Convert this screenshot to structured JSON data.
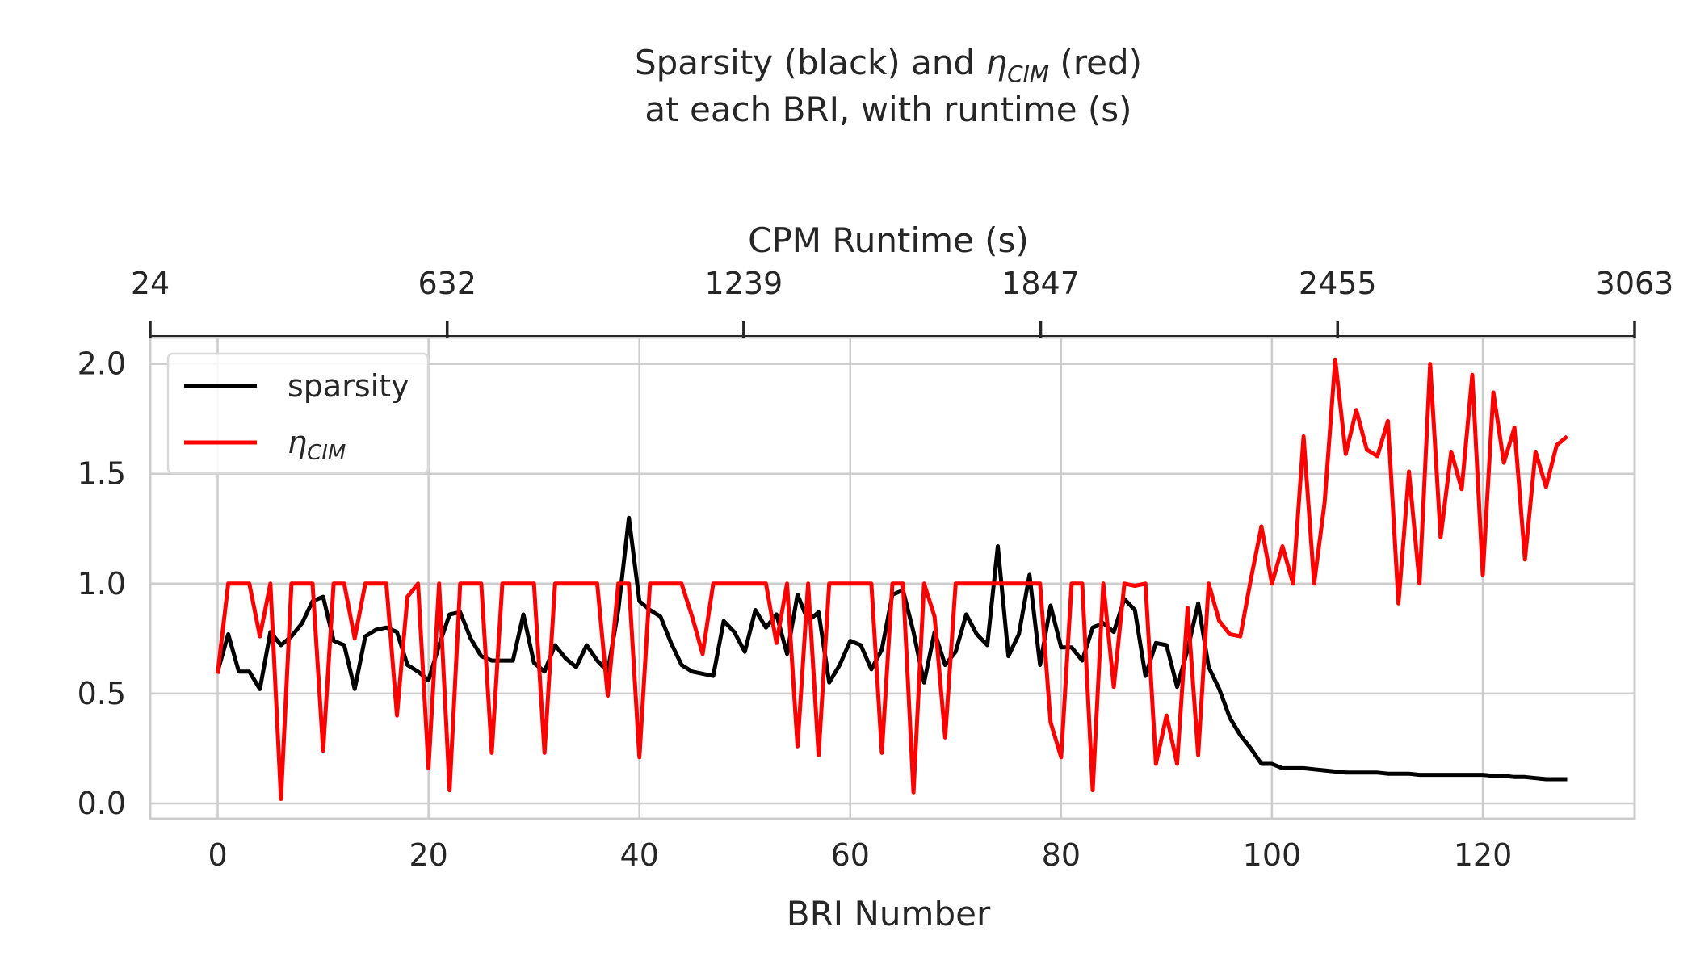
{
  "chart_data": {
    "type": "line",
    "title": {
      "line1_pre": "Sparsity (black) and ",
      "eta": "η",
      "sub": "CIM",
      "line1_post": " (red)",
      "line2": "at each BRI, with runtime (s)"
    },
    "xlabel": "BRI Number",
    "x2label": "CPM Runtime (s)",
    "xlim": [
      -6.4,
      134.4
    ],
    "ylim": [
      -0.07,
      2.12
    ],
    "xticks": [
      0,
      20,
      40,
      60,
      80,
      100,
      120
    ],
    "xtick_labels": [
      "0",
      "20",
      "40",
      "60",
      "80",
      "100",
      "120"
    ],
    "yticks": [
      0.0,
      0.5,
      1.0,
      1.5,
      2.0
    ],
    "ytick_labels": [
      "0.0",
      "0.5",
      "1.0",
      "1.5",
      "2.0"
    ],
    "top_axis": {
      "ticks": [
        24,
        632,
        1239,
        1847,
        2455,
        3063
      ],
      "tick_labels": [
        "24",
        "632",
        "1239",
        "1847",
        "2455",
        "3063"
      ],
      "range": [
        24,
        3063
      ]
    },
    "grid": true,
    "legend_position": "top-left",
    "series": [
      {
        "name": "sparsity",
        "color": "#000000",
        "x": [
          0,
          1,
          2,
          3,
          4,
          5,
          6,
          7,
          8,
          9,
          10,
          11,
          12,
          13,
          14,
          15,
          16,
          17,
          18,
          19,
          20,
          21,
          22,
          23,
          24,
          25,
          26,
          27,
          28,
          29,
          30,
          31,
          32,
          33,
          34,
          35,
          36,
          37,
          38,
          39,
          40,
          41,
          42,
          43,
          44,
          45,
          46,
          47,
          48,
          49,
          50,
          51,
          52,
          53,
          54,
          55,
          56,
          57,
          58,
          59,
          60,
          61,
          62,
          63,
          64,
          65,
          66,
          67,
          68,
          69,
          70,
          71,
          72,
          73,
          74,
          75,
          76,
          77,
          78,
          79,
          80,
          81,
          82,
          83,
          84,
          85,
          86,
          87,
          88,
          89,
          90,
          91,
          92,
          93,
          94,
          95,
          96,
          97,
          98,
          99,
          100,
          101,
          102,
          103,
          104,
          105,
          106,
          107,
          108,
          109,
          110,
          111,
          112,
          113,
          114,
          115,
          116,
          117,
          118,
          119,
          120,
          121,
          122,
          123,
          124,
          125,
          126,
          127,
          128
        ],
        "values": [
          0.6,
          0.77,
          0.6,
          0.6,
          0.52,
          0.78,
          0.72,
          0.76,
          0.82,
          0.92,
          0.94,
          0.74,
          0.72,
          0.52,
          0.76,
          0.79,
          0.8,
          0.78,
          0.63,
          0.6,
          0.56,
          0.72,
          0.86,
          0.87,
          0.75,
          0.67,
          0.65,
          0.65,
          0.65,
          0.86,
          0.64,
          0.6,
          0.72,
          0.66,
          0.62,
          0.72,
          0.65,
          0.6,
          0.88,
          1.3,
          0.92,
          0.88,
          0.85,
          0.73,
          0.63,
          0.6,
          0.59,
          0.58,
          0.83,
          0.78,
          0.69,
          0.88,
          0.8,
          0.86,
          0.68,
          0.95,
          0.83,
          0.87,
          0.55,
          0.63,
          0.74,
          0.72,
          0.61,
          0.7,
          0.95,
          0.97,
          0.78,
          0.55,
          0.78,
          0.63,
          0.69,
          0.86,
          0.77,
          0.72,
          1.17,
          0.67,
          0.77,
          1.04,
          0.63,
          0.9,
          0.71,
          0.71,
          0.65,
          0.8,
          0.82,
          0.78,
          0.93,
          0.88,
          0.58,
          0.73,
          0.72,
          0.53,
          0.7,
          0.91,
          0.62,
          0.52,
          0.39,
          0.31,
          0.25,
          0.18,
          0.18,
          0.16,
          0.16,
          0.16,
          0.155,
          0.15,
          0.145,
          0.14,
          0.14,
          0.14,
          0.14,
          0.135,
          0.135,
          0.135,
          0.13,
          0.13,
          0.13,
          0.13,
          0.13,
          0.13,
          0.13,
          0.125,
          0.125,
          0.12,
          0.12,
          0.115,
          0.11,
          0.11,
          0.11
        ]
      },
      {
        "name": "η",
        "name_sub": "CIM",
        "color": "#ff0000",
        "x": [
          0,
          1,
          2,
          3,
          4,
          5,
          6,
          7,
          8,
          9,
          10,
          11,
          12,
          13,
          14,
          15,
          16,
          17,
          18,
          19,
          20,
          21,
          22,
          23,
          24,
          25,
          26,
          27,
          28,
          29,
          30,
          31,
          32,
          33,
          34,
          35,
          36,
          37,
          38,
          39,
          40,
          41,
          42,
          43,
          44,
          45,
          46,
          47,
          48,
          49,
          50,
          51,
          52,
          53,
          54,
          55,
          56,
          57,
          58,
          59,
          60,
          61,
          62,
          63,
          64,
          65,
          66,
          67,
          68,
          69,
          70,
          71,
          72,
          73,
          74,
          75,
          76,
          77,
          78,
          79,
          80,
          81,
          82,
          83,
          84,
          85,
          86,
          87,
          88,
          89,
          90,
          91,
          92,
          93,
          94,
          95,
          96,
          97,
          98,
          99,
          100,
          101,
          102,
          103,
          104,
          105,
          106,
          107,
          108,
          109,
          110,
          111,
          112,
          113,
          114,
          115,
          116,
          117,
          118,
          119,
          120,
          121,
          122,
          123,
          124,
          125,
          126,
          127,
          128
        ],
        "values": [
          0.59,
          1.0,
          1.0,
          1.0,
          0.76,
          1.0,
          0.02,
          1.0,
          1.0,
          1.0,
          0.24,
          1.0,
          1.0,
          0.75,
          1.0,
          1.0,
          1.0,
          0.4,
          0.94,
          1.0,
          0.16,
          1.0,
          0.06,
          1.0,
          1.0,
          1.0,
          0.23,
          1.0,
          1.0,
          1.0,
          1.0,
          0.23,
          1.0,
          1.0,
          1.0,
          1.0,
          1.0,
          0.49,
          1.0,
          1.0,
          0.21,
          1.0,
          1.0,
          1.0,
          1.0,
          0.85,
          0.68,
          1.0,
          1.0,
          1.0,
          1.0,
          1.0,
          1.0,
          0.73,
          1.0,
          0.26,
          1.0,
          0.22,
          1.0,
          1.0,
          1.0,
          1.0,
          1.0,
          0.23,
          1.0,
          1.0,
          0.05,
          1.0,
          0.85,
          0.3,
          1.0,
          1.0,
          1.0,
          1.0,
          1.0,
          1.0,
          1.0,
          1.0,
          1.0,
          0.37,
          0.21,
          1.0,
          1.0,
          0.06,
          1.0,
          0.53,
          1.0,
          0.99,
          1.0,
          0.18,
          0.4,
          0.18,
          0.89,
          0.22,
          1.0,
          0.83,
          0.77,
          0.76,
          1.02,
          1.26,
          1.0,
          1.17,
          1.0,
          1.67,
          1.0,
          1.37,
          2.02,
          1.59,
          1.79,
          1.61,
          1.58,
          1.74,
          0.91,
          1.51,
          1.0,
          2.0,
          1.21,
          1.6,
          1.43,
          1.95,
          1.04,
          1.87,
          1.55,
          1.71,
          1.11,
          1.6,
          1.44,
          1.63,
          1.67
        ]
      }
    ]
  }
}
